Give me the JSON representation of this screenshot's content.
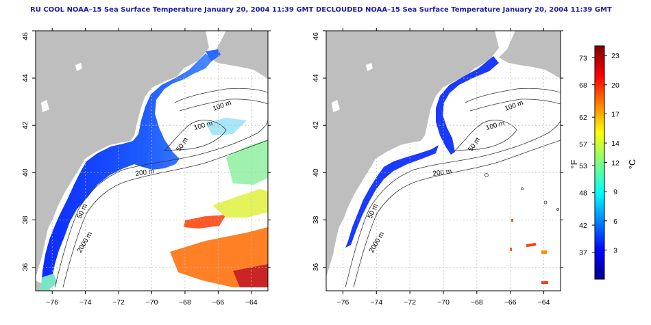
{
  "panels": [
    {
      "title": "RU COOL NOAA–15 Sea Surface Temperature January 20, 2004 11:39 GMT",
      "contour_labels": [
        "100 m",
        "100 m",
        "50 m",
        "200 m",
        "50 m",
        "2000 m"
      ]
    },
    {
      "title": "DECLOUDED NOAA–15 Sea Surface Temperature January 20, 2004 11:39 GMT",
      "contour_labels": [
        "100 m",
        "100 m",
        "50 m",
        "200 m",
        "50 m",
        "2000 m"
      ]
    }
  ],
  "map_axes": {
    "x_ticks": [
      "−76",
      "−74",
      "−72",
      "−70",
      "−68",
      "−66",
      "−64"
    ],
    "y_ticks": [
      "36",
      "38",
      "40",
      "42",
      "44",
      "46"
    ],
    "lon_range": [
      -77.0,
      -63.0
    ],
    "lat_range": [
      35.0,
      46.0
    ],
    "grid": "dotted"
  },
  "colorbar": {
    "fahrenheit_label": "°F",
    "celsius_label": "°C",
    "fahrenheit_ticks": [
      "73",
      "68",
      "62",
      "57",
      "53",
      "48",
      "42",
      "37"
    ],
    "celsius_ticks": [
      "23",
      "20",
      "17",
      "14",
      "12",
      "9",
      "6",
      "3"
    ],
    "celsius_range": [
      0,
      24
    ],
    "colormap": "jet"
  },
  "colors": {
    "land": "#bebebe",
    "title": "#1d1daa",
    "contour": "#333333"
  }
}
